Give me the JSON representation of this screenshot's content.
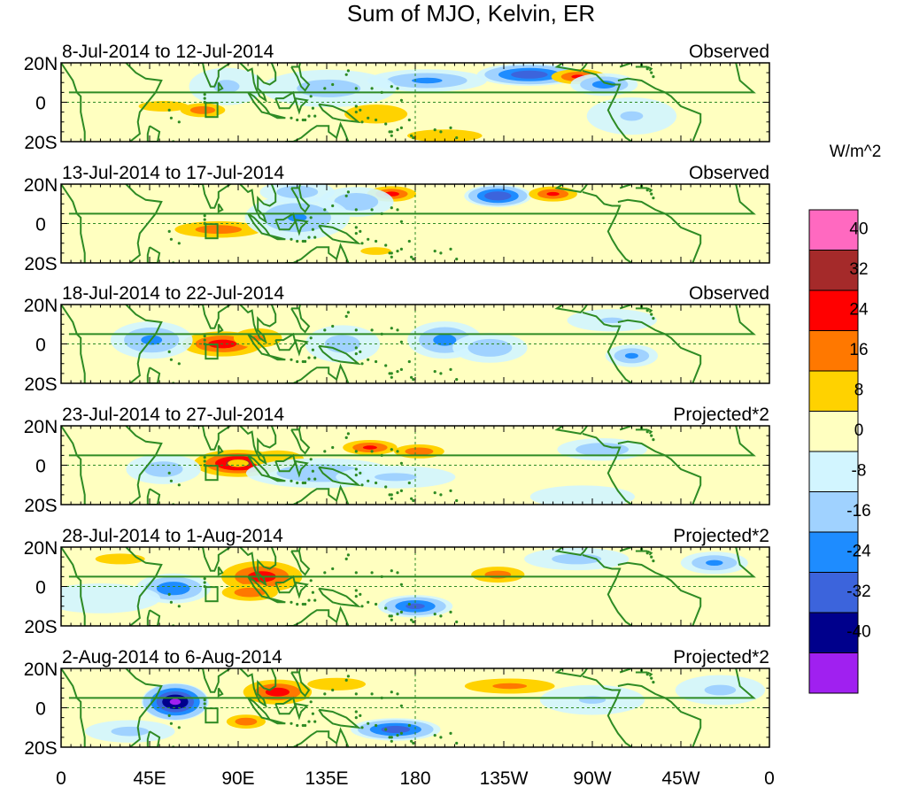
{
  "chart_data": {
    "type": "heatmap",
    "title": "Sum of MJO, Kelvin, ER",
    "units": "W/m^2",
    "x_tick_labels": [
      "0",
      "45E",
      "90E",
      "135E",
      "180",
      "135W",
      "90W",
      "45W",
      "0"
    ],
    "x_ticks_deg": [
      0,
      45,
      90,
      135,
      180,
      225,
      270,
      315,
      360
    ],
    "y_tick_labels": [
      "20N",
      "0",
      "20S"
    ],
    "y_ticks_deg": [
      20,
      0,
      -20
    ],
    "xlim": [
      0,
      360
    ],
    "ylim": [
      -20,
      20
    ],
    "colorbar": {
      "labels": [
        "40",
        "32",
        "24",
        "16",
        "8",
        "0",
        "-8",
        "-16",
        "-24",
        "-32",
        "-40"
      ],
      "levels": [
        40,
        32,
        24,
        16,
        8,
        0,
        -8,
        -16,
        -24,
        -32,
        -40
      ],
      "colors": [
        "#ff69c0",
        "#a52a2a",
        "#ff0000",
        "#ff7800",
        "#ffd200",
        "#ffffc0",
        "#d2f5ff",
        "#a0d2ff",
        "#1e8cff",
        "#3c64dc",
        "#00008c",
        "#a020f0"
      ]
    },
    "panels": [
      {
        "period": "8-Jul-2014 to 12-Jul-2014",
        "label": "Observed",
        "features": [
          {
            "lon": 186,
            "lat": 11,
            "sx": 16,
            "sy": 3,
            "v": -18
          },
          {
            "lon": 136,
            "lat": 7,
            "sx": 18,
            "sy": 5,
            "v": -12
          },
          {
            "lon": 238,
            "lat": 14,
            "sx": 14,
            "sy": 3,
            "v": -30
          },
          {
            "lon": 263,
            "lat": 13,
            "sx": 9,
            "sy": 2.5,
            "v": 26
          },
          {
            "lon": 276,
            "lat": 9,
            "sx": 9,
            "sy": 3,
            "v": -20
          },
          {
            "lon": 72,
            "lat": -4,
            "sx": 8,
            "sy": 2.5,
            "v": 22
          },
          {
            "lon": 52,
            "lat": -2,
            "sx": 14,
            "sy": 3,
            "v": 12
          },
          {
            "lon": 160,
            "lat": -6,
            "sx": 20,
            "sy": 6,
            "v": 11
          },
          {
            "lon": 195,
            "lat": -17,
            "sx": 18,
            "sy": 3,
            "v": 14
          },
          {
            "lon": 84,
            "lat": 8,
            "sx": 10,
            "sy": 5,
            "v": -10
          },
          {
            "lon": 290,
            "lat": -7,
            "sx": 12,
            "sy": 5,
            "v": -9
          },
          {
            "lon": 345,
            "lat": 10,
            "sx": 8,
            "sy": 5,
            "v": 7
          }
        ]
      },
      {
        "period": "13-Jul-2014 to 17-Jul-2014",
        "label": "Observed",
        "features": [
          {
            "lon": 168,
            "lat": 15,
            "sx": 8,
            "sy": 2.5,
            "v": 27
          },
          {
            "lon": 150,
            "lat": 11,
            "sx": 10,
            "sy": 4,
            "v": -15
          },
          {
            "lon": 222,
            "lat": 14,
            "sx": 9,
            "sy": 3,
            "v": -32
          },
          {
            "lon": 250,
            "lat": 15,
            "sx": 8,
            "sy": 2.5,
            "v": 26
          },
          {
            "lon": 80,
            "lat": -3,
            "sx": 16,
            "sy": 3,
            "v": 21
          },
          {
            "lon": 120,
            "lat": 3,
            "sx": 14,
            "sy": 6,
            "v": -17
          },
          {
            "lon": 120,
            "lat": 16,
            "sx": 10,
            "sy": 3,
            "v": -14
          },
          {
            "lon": 190,
            "lat": 2,
            "sx": 18,
            "sy": 6,
            "v": 7
          },
          {
            "lon": 290,
            "lat": 2,
            "sx": 20,
            "sy": 6,
            "v": 7
          },
          {
            "lon": 40,
            "lat": 3,
            "sx": 12,
            "sy": 5,
            "v": 8
          },
          {
            "lon": 160,
            "lat": -14,
            "sx": 16,
            "sy": 4,
            "v": 9
          }
        ]
      },
      {
        "period": "18-Jul-2014 to 22-Jul-2014",
        "label": "Observed",
        "features": [
          {
            "lon": 82,
            "lat": 0,
            "sx": 13,
            "sy": 4,
            "v": 28
          },
          {
            "lon": 100,
            "lat": 3,
            "sx": 10,
            "sy": 4,
            "v": 17
          },
          {
            "lon": 46,
            "lat": 2,
            "sx": 11,
            "sy": 5,
            "v": -18
          },
          {
            "lon": 195,
            "lat": 2,
            "sx": 10,
            "sy": 5,
            "v": -19
          },
          {
            "lon": 218,
            "lat": -2,
            "sx": 10,
            "sy": 4,
            "v": -15
          },
          {
            "lon": 143,
            "lat": 0,
            "sx": 10,
            "sy": 5,
            "v": -12
          },
          {
            "lon": 290,
            "lat": -6,
            "sx": 7,
            "sy": 3,
            "v": -18
          },
          {
            "lon": 340,
            "lat": 8,
            "sx": 18,
            "sy": 4,
            "v": 8
          },
          {
            "lon": 280,
            "lat": 12,
            "sx": 12,
            "sy": 3,
            "v": -9
          },
          {
            "lon": 235,
            "lat": 14,
            "sx": 12,
            "sy": 3,
            "v": 7
          },
          {
            "lon": 150,
            "lat": 14,
            "sx": 14,
            "sy": 4,
            "v": 7
          }
        ]
      },
      {
        "period": "23-Jul-2014 to 27-Jul-2014",
        "label": "Projected*2",
        "features": [
          {
            "lon": 90,
            "lat": 1,
            "sx": 13,
            "sy": 4,
            "v": 36
          },
          {
            "lon": 90,
            "lat": 1,
            "sx": 5,
            "sy": 1.8,
            "v": 14
          },
          {
            "lon": 110,
            "lat": 3,
            "sx": 12,
            "sy": 4,
            "v": 15
          },
          {
            "lon": 157,
            "lat": 9,
            "sx": 9,
            "sy": 2.5,
            "v": 26
          },
          {
            "lon": 182,
            "lat": 7,
            "sx": 9,
            "sy": 2.5,
            "v": 22
          },
          {
            "lon": 132,
            "lat": -4,
            "sx": 20,
            "sy": 4,
            "v": -15
          },
          {
            "lon": 170,
            "lat": -6,
            "sx": 16,
            "sy": 3,
            "v": -10
          },
          {
            "lon": 52,
            "lat": -2,
            "sx": 10,
            "sy": 4,
            "v": -13
          },
          {
            "lon": 275,
            "lat": 8,
            "sx": 12,
            "sy": 3,
            "v": -15
          },
          {
            "lon": 248,
            "lat": -4,
            "sx": 16,
            "sy": 4,
            "v": 7
          },
          {
            "lon": 265,
            "lat": -16,
            "sx": 14,
            "sy": 3,
            "v": -8
          }
        ]
      },
      {
        "period": "28-Jul-2014 to 1-Aug-2014",
        "label": "Projected*2",
        "features": [
          {
            "lon": 102,
            "lat": 5,
            "sx": 13,
            "sy": 5,
            "v": 28
          },
          {
            "lon": 96,
            "lat": -3,
            "sx": 10,
            "sy": 3,
            "v": 22
          },
          {
            "lon": 57,
            "lat": -1,
            "sx": 10,
            "sy": 4,
            "v": -23
          },
          {
            "lon": 180,
            "lat": -10,
            "sx": 10,
            "sy": 3,
            "v": -27
          },
          {
            "lon": 222,
            "lat": 6,
            "sx": 10,
            "sy": 3,
            "v": 20
          },
          {
            "lon": 30,
            "lat": 14,
            "sx": 14,
            "sy": 3,
            "v": 12
          },
          {
            "lon": 148,
            "lat": 8,
            "sx": 20,
            "sy": 5,
            "v": 8
          },
          {
            "lon": 262,
            "lat": 14,
            "sx": 14,
            "sy": 3,
            "v": -12
          },
          {
            "lon": 332,
            "lat": 12,
            "sx": 9,
            "sy": 3,
            "v": -18
          },
          {
            "lon": 300,
            "lat": -4,
            "sx": 18,
            "sy": 5,
            "v": 7
          },
          {
            "lon": 20,
            "lat": -6,
            "sx": 16,
            "sy": 4,
            "v": -8
          }
        ]
      },
      {
        "period": "2-Aug-2014 to 6-Aug-2014",
        "label": "Projected*2",
        "features": [
          {
            "lon": 58,
            "lat": 3,
            "sx": 9,
            "sy": 5,
            "v": -42
          },
          {
            "lon": 110,
            "lat": 8,
            "sx": 11,
            "sy": 4,
            "v": 28
          },
          {
            "lon": 94,
            "lat": -7,
            "sx": 7,
            "sy": 2.5,
            "v": 22
          },
          {
            "lon": 170,
            "lat": -11,
            "sx": 12,
            "sy": 3,
            "v": -29
          },
          {
            "lon": 140,
            "lat": 12,
            "sx": 14,
            "sy": 3,
            "v": 14
          },
          {
            "lon": 228,
            "lat": 11,
            "sx": 18,
            "sy": 3,
            "v": 18
          },
          {
            "lon": 200,
            "lat": 14,
            "sx": 12,
            "sy": 3,
            "v": 8
          },
          {
            "lon": 270,
            "lat": 4,
            "sx": 14,
            "sy": 4,
            "v": -9
          },
          {
            "lon": 300,
            "lat": -12,
            "sx": 14,
            "sy": 4,
            "v": 7
          },
          {
            "lon": 335,
            "lat": 9,
            "sx": 12,
            "sy": 4,
            "v": -10
          },
          {
            "lon": 35,
            "lat": -12,
            "sx": 12,
            "sy": 3,
            "v": -11
          }
        ]
      }
    ]
  }
}
